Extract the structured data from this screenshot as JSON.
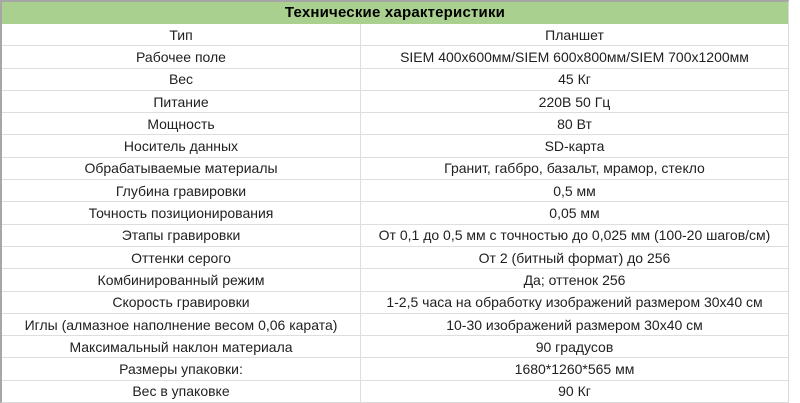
{
  "table": {
    "title": "Технические характеристики",
    "header_bg": "#a9d08e",
    "outer_border_color": "#a6a6a6",
    "grid_color": "#dedede",
    "rows": [
      {
        "name": "Тип",
        "value": "Планшет"
      },
      {
        "name": "Рабочее поле",
        "value": "SIEM 400х600мм/SIEM 600х800мм/SIEM 700х1200мм"
      },
      {
        "name": "Вес",
        "value": "45 Кг"
      },
      {
        "name": "Питание",
        "value": "220В 50 Гц"
      },
      {
        "name": "Мощность",
        "value": "80 Вт"
      },
      {
        "name": "Носитель данных",
        "value": "SD-карта"
      },
      {
        "name": "Обрабатываемые материалы",
        "value": "Гранит, габбро, базальт, мрамор, стекло"
      },
      {
        "name": "Глубина гравировки",
        "value": "0,5 мм"
      },
      {
        "name": "Точность позиционирования",
        "value": "0,05 мм"
      },
      {
        "name": "Этапы гравировки",
        "value": "От 0,1 до 0,5 мм с точностью до 0,025 мм (100-20 шагов/см)"
      },
      {
        "name": "Оттенки серого",
        "value": "От 2 (битный формат) до 256"
      },
      {
        "name": "Комбинированный режим",
        "value": "Да; оттенок 256"
      },
      {
        "name": "Скорость гравировки",
        "value": "1-2,5 часа на обработку изображений размером 30х40 см"
      },
      {
        "name": "Иглы  (алмазное наполнение весом 0,06 карата)",
        "value": "10-30 изображений размером 30х40 см"
      },
      {
        "name": "Максимальный наклон материала",
        "value": "90 градусов"
      },
      {
        "name": "Размеры упаковки:",
        "value": "1680*1260*565 мм"
      },
      {
        "name": "Вес в упаковке",
        "value": "90 Кг"
      }
    ]
  }
}
